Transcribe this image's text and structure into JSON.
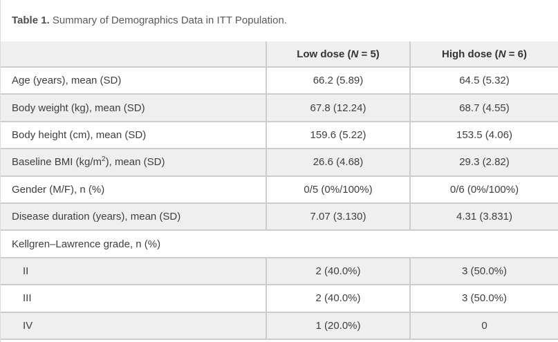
{
  "caption": {
    "label": "Table 1.",
    "text": " Summary of Demographics Data in ITT Population."
  },
  "columns": {
    "low": {
      "prefix": "Low dose (",
      "n_symbol": "N",
      "suffix": " = 5)"
    },
    "high": {
      "prefix": "High dose (",
      "n_symbol": "N",
      "suffix": " = 6)"
    }
  },
  "rows": [
    {
      "label": "Age (years), mean (SD)",
      "low": "66.2 (5.89)",
      "high": "64.5 (5.32)"
    },
    {
      "label": "Body weight (kg), mean (SD)",
      "low": "67.8 (12.24)",
      "high": "68.7 (4.55)"
    },
    {
      "label": "Body height (cm), mean (SD)",
      "low": "159.6 (5.22)",
      "high": "153.5 (4.06)"
    },
    {
      "label_prefix": "Baseline BMI (kg/m",
      "label_sup": "2",
      "label_suffix": "), mean (SD)",
      "low": "26.6 (4.68)",
      "high": "29.3 (2.82)"
    },
    {
      "label": "Gender (M/F), n (%)",
      "low": "0/5 (0%/100%)",
      "high": "0/6 (0%/100%)"
    },
    {
      "label": "Disease duration (years), mean (SD)",
      "low": "7.07 (3.130)",
      "high": "4.31 (3.831)"
    },
    {
      "label": "Kellgren–Lawrence grade, n (%)",
      "low": "",
      "high": "",
      "group_header": true
    },
    {
      "label": "II",
      "low": "2 (40.0%)",
      "high": "3 (50.0%)",
      "indent": true
    },
    {
      "label": "III",
      "low": "2 (40.0%)",
      "high": "3 (50.0%)",
      "indent": true
    },
    {
      "label": "IV",
      "low": "1 (20.0%)",
      "high": "0",
      "indent": true
    }
  ],
  "colors": {
    "row_shade": "#efefef",
    "border": "#cccccc",
    "text": "#3e3e3e",
    "caption_text": "#595959"
  }
}
